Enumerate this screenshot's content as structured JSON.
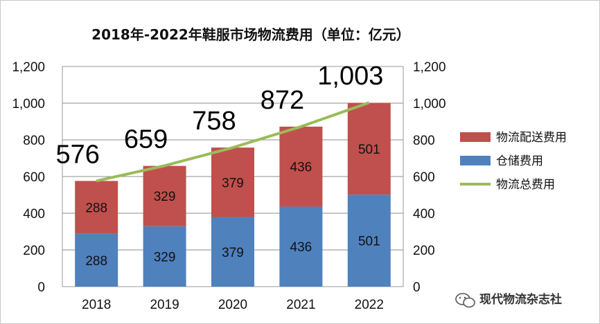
{
  "chart_data": {
    "type": "bar",
    "stacked": true,
    "title": "2018年-2022年鞋服市场物流费用（单位：亿元）",
    "categories": [
      "2018",
      "2019",
      "2020",
      "2021",
      "2022"
    ],
    "series": [
      {
        "name": "仓储费用",
        "type": "bar",
        "color": "#4F81BD",
        "values": [
          288,
          329,
          379,
          436,
          501
        ],
        "labels": [
          "288",
          "329",
          "379",
          "436",
          "501"
        ]
      },
      {
        "name": "物流配送费用",
        "type": "bar",
        "color": "#C0504D",
        "values": [
          288,
          329,
          379,
          436,
          501
        ],
        "labels": [
          "288",
          "329",
          "379",
          "436",
          "501"
        ]
      },
      {
        "name": "物流总费用",
        "type": "line",
        "color": "#9BBB59",
        "values": [
          576,
          659,
          758,
          872,
          1003
        ],
        "labels": [
          "576",
          "659",
          "758",
          "872",
          "1,003"
        ]
      }
    ],
    "ylim": [
      0,
      1200
    ],
    "yticks": [
      "0",
      "200",
      "400",
      "600",
      "800",
      "1,000",
      "1,200"
    ],
    "y_right_ticks": [
      "0",
      "200",
      "400",
      "600",
      "800",
      "1,000",
      "1,200"
    ],
    "grid": true,
    "legend_position": "right",
    "legend_order": [
      "物流配送费用",
      "仓储费用",
      "物流总费用"
    ]
  },
  "watermark": "现代物流杂志社"
}
